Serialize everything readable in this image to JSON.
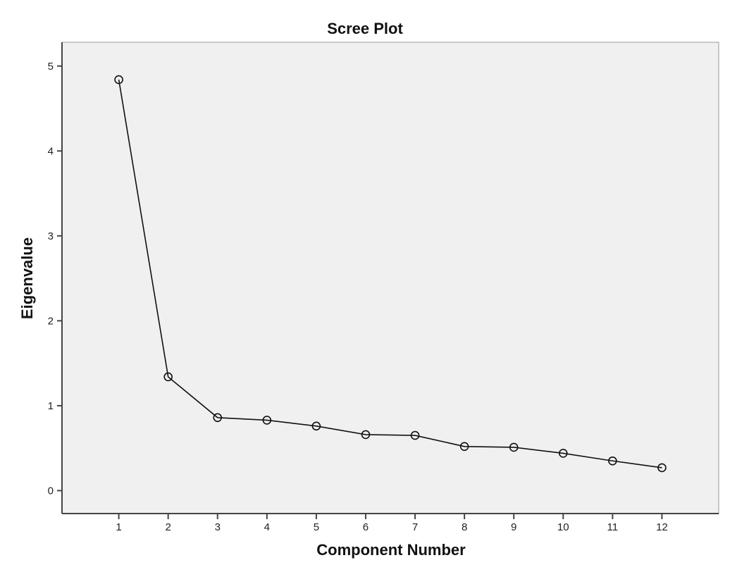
{
  "chart_data": {
    "type": "line",
    "title": "Scree Plot",
    "xlabel": "Component Number",
    "ylabel": "Eigenvalue",
    "x": [
      1,
      2,
      3,
      4,
      5,
      6,
      7,
      8,
      9,
      10,
      11,
      12
    ],
    "values": [
      4.84,
      1.34,
      0.86,
      0.83,
      0.76,
      0.66,
      0.65,
      0.52,
      0.51,
      0.44,
      0.35,
      0.27
    ],
    "xlim": [
      -0.15,
      13.15
    ],
    "ylim": [
      -0.27,
      5.28
    ],
    "yticks": [
      0,
      1,
      2,
      3,
      4,
      5
    ],
    "xticks": [
      1,
      2,
      3,
      4,
      5,
      6,
      7,
      8,
      9,
      10,
      11,
      12
    ],
    "grid": false,
    "marker": "open-circle",
    "colors": {
      "plot_bg": "#f0f0f0",
      "line": "#111111",
      "frame": "#444444"
    }
  }
}
